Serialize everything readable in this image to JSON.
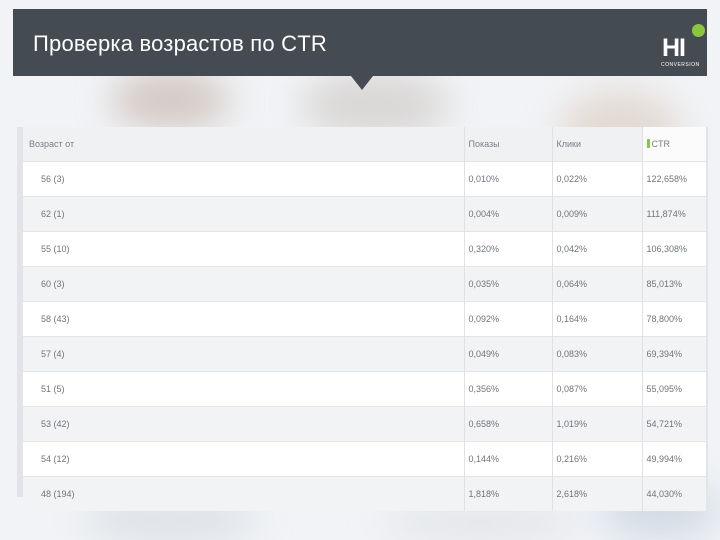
{
  "header": {
    "title": "Проверка возрастов по CTR",
    "logo_text": "HI",
    "logo_subtitle": "CONVERSION"
  },
  "table": {
    "columns": [
      "Возраст от",
      "Показы",
      "Клики",
      "CTR"
    ],
    "rows": [
      [
        "56 (3)",
        "0,010%",
        "0,022%",
        "122,658%"
      ],
      [
        "62 (1)",
        "0,004%",
        "0,009%",
        "111,874%"
      ],
      [
        "55 (10)",
        "0,320%",
        "0,042%",
        "106,308%"
      ],
      [
        "60 (3)",
        "0,035%",
        "0,064%",
        "85,013%"
      ],
      [
        "58 (43)",
        "0,092%",
        "0,164%",
        "78,800%"
      ],
      [
        "57 (4)",
        "0,049%",
        "0,083%",
        "69,394%"
      ],
      [
        "51 (5)",
        "0,356%",
        "0,087%",
        "55,095%"
      ],
      [
        "53 (42)",
        "0,658%",
        "1,019%",
        "54,721%"
      ],
      [
        "54 (12)",
        "0,144%",
        "0,216%",
        "49,994%"
      ],
      [
        "48 (194)",
        "1,818%",
        "2,618%",
        "44,030%"
      ]
    ]
  },
  "colors": {
    "header_bg": "#454b52",
    "accent_green": "#8cc63f"
  }
}
